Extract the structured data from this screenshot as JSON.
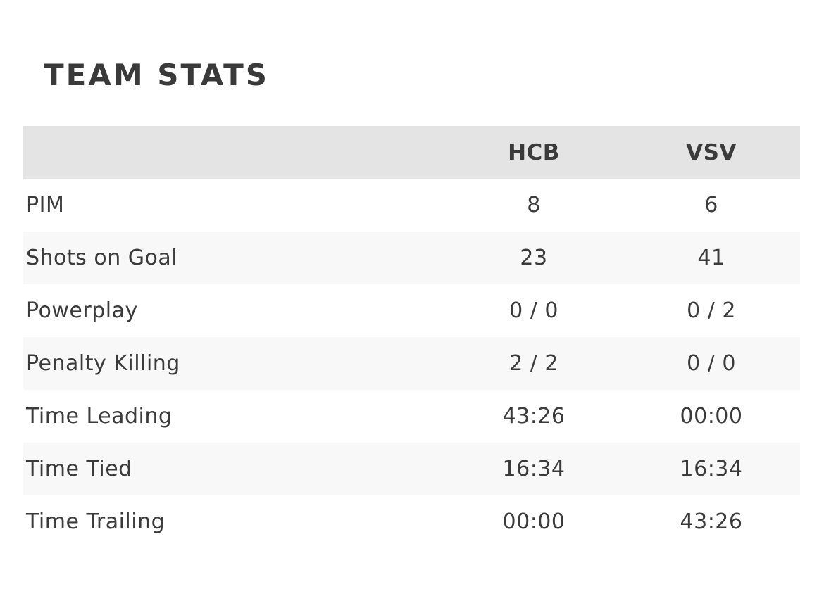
{
  "page": {
    "title": "TEAM STATS"
  },
  "table": {
    "columns": [
      "HCB",
      "VSV"
    ],
    "rows": [
      {
        "label": "PIM",
        "hcb": "8",
        "vsv": "6"
      },
      {
        "label": "Shots on Goal",
        "hcb": "23",
        "vsv": "41"
      },
      {
        "label": "Powerplay",
        "hcb": "0 / 0",
        "vsv": "0 / 2"
      },
      {
        "label": "Penalty Killing",
        "hcb": "2 / 2",
        "vsv": "0 / 0"
      },
      {
        "label": "Time Leading",
        "hcb": "43:26",
        "vsv": "00:00"
      },
      {
        "label": "Time Tied",
        "hcb": "16:34",
        "vsv": "16:34"
      },
      {
        "label": "Time Trailing",
        "hcb": "00:00",
        "vsv": "43:26"
      }
    ]
  },
  "colors": {
    "text": "#3b3b3b",
    "title_text": "#3a3a3a",
    "header_bg": "#e4e4e4",
    "stripe_bg": "#f8f8f8",
    "page_bg": "#ffffff"
  }
}
